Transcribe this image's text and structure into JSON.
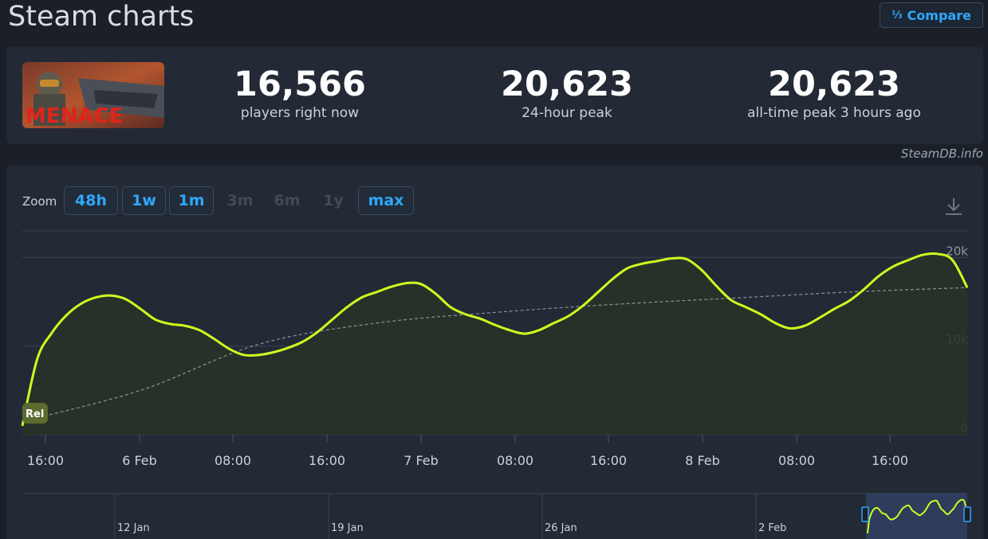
{
  "header": {
    "title": "Steam charts",
    "compare_icon": "1/2/3-icon",
    "compare_label": "Compare"
  },
  "stats": {
    "game_thumbnail_text": "MENACE",
    "players_now": {
      "value": "16,566",
      "label": "players right now"
    },
    "peak_24h": {
      "value": "20,623",
      "label": "24-hour peak"
    },
    "all_time_peak": {
      "value": "20,623",
      "label": "all-time peak 3 hours ago"
    }
  },
  "attribution": "SteamDB.info",
  "zoom": {
    "label": "Zoom",
    "options": [
      {
        "label": "48h",
        "enabled": true
      },
      {
        "label": "1w",
        "enabled": true
      },
      {
        "label": "1m",
        "enabled": true
      },
      {
        "label": "3m",
        "enabled": false
      },
      {
        "label": "6m",
        "enabled": false
      },
      {
        "label": "1y",
        "enabled": false
      },
      {
        "label": "max",
        "enabled": true
      }
    ]
  },
  "colors": {
    "series": "#ccff1f",
    "trend": "#8a929b",
    "accent": "#2ea8ff",
    "background": "#1b2028",
    "card": "#232a35"
  },
  "chart_data": {
    "type": "line",
    "y_ticks": [
      "0",
      "10k",
      "20k"
    ],
    "x_ticks": [
      "16:00",
      "6 Feb",
      "08:00",
      "16:00",
      "7 Feb",
      "08:00",
      "16:00",
      "8 Feb",
      "08:00",
      "16:00"
    ],
    "ylim": [
      0,
      23000
    ],
    "grid": true,
    "series": [
      {
        "points": [
          [
            0,
            1000
          ],
          [
            1,
            8500
          ],
          [
            2,
            11500
          ],
          [
            3,
            13500
          ],
          [
            4,
            14800
          ],
          [
            5,
            15500
          ],
          [
            6,
            15700
          ],
          [
            7,
            15300
          ],
          [
            8,
            14200
          ],
          [
            9,
            13000
          ],
          [
            10,
            12500
          ],
          [
            11,
            12300
          ],
          [
            12,
            11800
          ],
          [
            13,
            10800
          ],
          [
            14,
            9700
          ],
          [
            15,
            9000
          ],
          [
            16,
            9000
          ],
          [
            17,
            9300
          ],
          [
            18,
            9800
          ],
          [
            19,
            10500
          ],
          [
            20,
            11600
          ],
          [
            21,
            13000
          ],
          [
            22,
            14400
          ],
          [
            23,
            15500
          ],
          [
            24,
            16100
          ],
          [
            25,
            16700
          ],
          [
            26,
            17100
          ],
          [
            27,
            17000
          ],
          [
            28,
            15900
          ],
          [
            29,
            14400
          ],
          [
            30,
            13600
          ],
          [
            31,
            13100
          ],
          [
            32,
            12400
          ],
          [
            33,
            11800
          ],
          [
            34,
            11400
          ],
          [
            35,
            11800
          ],
          [
            36,
            12600
          ],
          [
            37,
            13400
          ],
          [
            38,
            14600
          ],
          [
            39,
            16100
          ],
          [
            40,
            17600
          ],
          [
            41,
            18800
          ],
          [
            42,
            19300
          ],
          [
            43,
            19600
          ],
          [
            44,
            19900
          ],
          [
            45,
            19800
          ],
          [
            46,
            18600
          ],
          [
            47,
            16800
          ],
          [
            48,
            15200
          ],
          [
            49,
            14400
          ],
          [
            50,
            13600
          ],
          [
            51,
            12600
          ],
          [
            52,
            12000
          ],
          [
            53,
            12300
          ],
          [
            54,
            13200
          ],
          [
            55,
            14200
          ],
          [
            56,
            15100
          ],
          [
            57,
            16400
          ],
          [
            58,
            17900
          ],
          [
            59,
            19000
          ],
          [
            60,
            19700
          ],
          [
            61,
            20300
          ],
          [
            62,
            20400
          ],
          [
            63,
            19700
          ],
          [
            64,
            16600
          ]
        ]
      },
      {
        "name": "trend",
        "points": [
          [
            0,
            1500
          ],
          [
            8,
            5000
          ],
          [
            16,
            10200
          ],
          [
            24,
            12600
          ],
          [
            32,
            13800
          ],
          [
            40,
            14700
          ],
          [
            48,
            15400
          ],
          [
            56,
            16100
          ],
          [
            64,
            16600
          ]
        ]
      }
    ],
    "navigator_ticks": [
      "12 Jan",
      "19 Jan",
      "26 Jan",
      "2 Feb"
    ],
    "rel_label": "Rel"
  }
}
